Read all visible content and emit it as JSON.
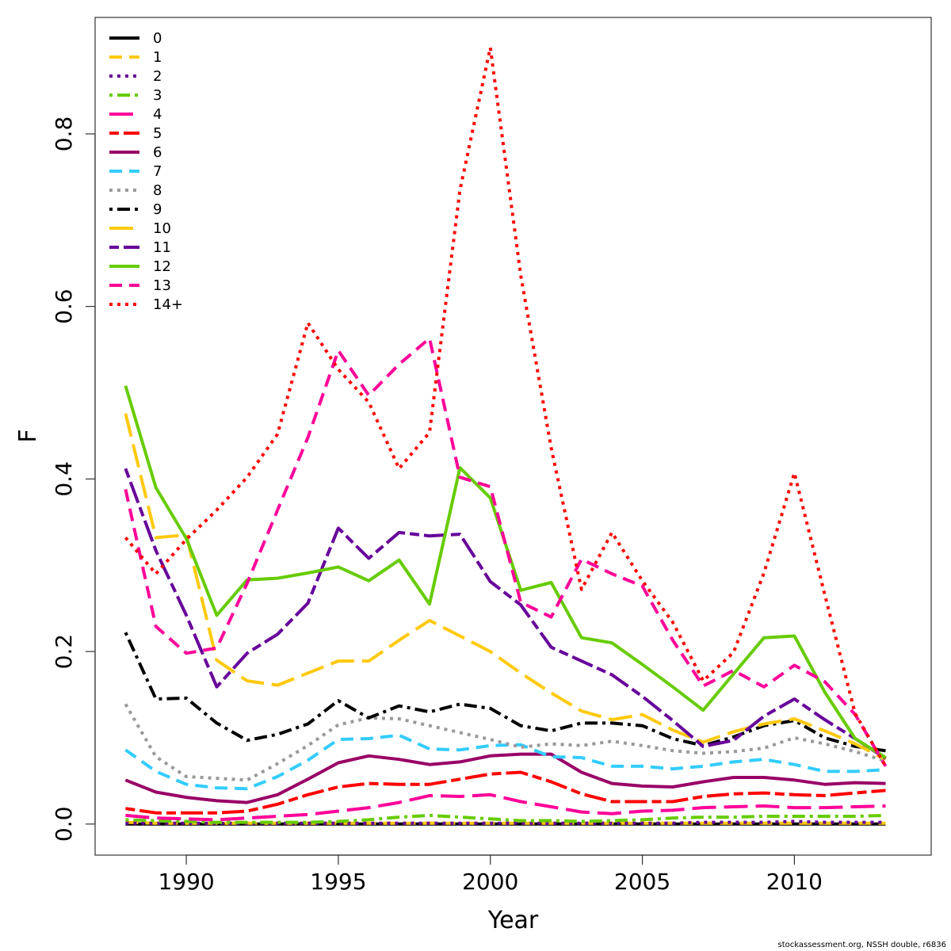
{
  "chart_data": {
    "type": "line",
    "xlabel": "Year",
    "ylabel": "F",
    "xlim": [
      1987,
      2014.5
    ],
    "ylim": [
      -0.036,
      0.935
    ],
    "x_ticks": [
      1990,
      1995,
      2000,
      2005,
      2010
    ],
    "y_ticks": [
      0.0,
      0.2,
      0.4,
      0.6,
      0.8
    ],
    "y_tick_labels": [
      "0.0",
      "0.2",
      "0.4",
      "0.6",
      "0.8"
    ],
    "legend_position": "top-left",
    "x": [
      1988,
      1989,
      1990,
      1991,
      1992,
      1993,
      1994,
      1995,
      1996,
      1997,
      1998,
      1999,
      2000,
      2001,
      2002,
      2003,
      2004,
      2005,
      2006,
      2007,
      2008,
      2009,
      2010,
      2011,
      2012,
      2013
    ],
    "series": [
      {
        "name": "0",
        "color": "#000000",
        "dash": "solid",
        "values": [
          0,
          0,
          0,
          0,
          0,
          0,
          0,
          0,
          0,
          0,
          0,
          0,
          0,
          0,
          0,
          0,
          0,
          0,
          0,
          0,
          0,
          0,
          0,
          0,
          0,
          0
        ]
      },
      {
        "name": "1",
        "color": "#FFC90E",
        "dash": "dashed",
        "values": [
          0.002,
          0.001,
          0.001,
          0.001,
          0.001,
          0.001,
          0.001,
          0.001,
          0.001,
          0.001,
          0.001,
          0.001,
          0.001,
          0.001,
          0.001,
          0.001,
          0.001,
          0.001,
          0.001,
          0.001,
          0.001,
          0.001,
          0.001,
          0.001,
          0.001,
          0.001
        ]
      },
      {
        "name": "2",
        "color": "#660099",
        "dash": "dotted",
        "values": [
          0.001,
          0.001,
          0.001,
          0.001,
          0.001,
          0.001,
          0.001,
          0.001,
          0.001,
          0.001,
          0.001,
          0.001,
          0.001,
          0.001,
          0.001,
          0.001,
          0.001,
          0.001,
          0.001,
          0.002,
          0.002,
          0.002,
          0.003,
          0.002,
          0.002,
          0.002
        ]
      },
      {
        "name": "3",
        "color": "#66CC00",
        "dash": "dotdash",
        "values": [
          0.005,
          0.004,
          0.003,
          0.002,
          0.002,
          0.002,
          0.002,
          0.003,
          0.005,
          0.008,
          0.01,
          0.008,
          0.006,
          0.004,
          0.004,
          0.003,
          0.004,
          0.005,
          0.007,
          0.008,
          0.008,
          0.009,
          0.009,
          0.009,
          0.009,
          0.01
        ]
      },
      {
        "name": "4",
        "color": "#FF0099",
        "dash": "longdash",
        "values": [
          0.01,
          0.007,
          0.006,
          0.005,
          0.007,
          0.009,
          0.011,
          0.015,
          0.019,
          0.025,
          0.033,
          0.032,
          0.034,
          0.026,
          0.02,
          0.014,
          0.012,
          0.015,
          0.016,
          0.019,
          0.02,
          0.021,
          0.019,
          0.019,
          0.02,
          0.021
        ]
      },
      {
        "name": "5",
        "color": "#FF0000",
        "dash": "twodash",
        "values": [
          0.018,
          0.013,
          0.013,
          0.013,
          0.015,
          0.023,
          0.034,
          0.043,
          0.047,
          0.046,
          0.046,
          0.052,
          0.058,
          0.06,
          0.049,
          0.035,
          0.026,
          0.026,
          0.026,
          0.032,
          0.035,
          0.036,
          0.034,
          0.033,
          0.036,
          0.039
        ]
      },
      {
        "name": "6",
        "color": "#990066",
        "dash": "solid",
        "values": [
          0.051,
          0.037,
          0.031,
          0.027,
          0.025,
          0.034,
          0.052,
          0.071,
          0.079,
          0.075,
          0.069,
          0.072,
          0.079,
          0.081,
          0.081,
          0.06,
          0.047,
          0.044,
          0.043,
          0.049,
          0.054,
          0.054,
          0.051,
          0.046,
          0.048,
          0.047
        ]
      },
      {
        "name": "7",
        "color": "#33CCFF",
        "dash": "dashed",
        "values": [
          0.086,
          0.061,
          0.046,
          0.042,
          0.041,
          0.055,
          0.074,
          0.098,
          0.099,
          0.103,
          0.087,
          0.086,
          0.091,
          0.092,
          0.078,
          0.077,
          0.067,
          0.067,
          0.064,
          0.067,
          0.072,
          0.075,
          0.069,
          0.061,
          0.061,
          0.063
        ]
      },
      {
        "name": "8",
        "color": "#999999",
        "dash": "dotted",
        "values": [
          0.139,
          0.078,
          0.055,
          0.053,
          0.051,
          0.07,
          0.091,
          0.115,
          0.123,
          0.122,
          0.114,
          0.106,
          0.098,
          0.089,
          0.093,
          0.091,
          0.096,
          0.091,
          0.085,
          0.082,
          0.084,
          0.088,
          0.1,
          0.093,
          0.084,
          0.073
        ]
      },
      {
        "name": "9",
        "color": "#000000",
        "dash": "dotdash",
        "values": [
          0.222,
          0.145,
          0.146,
          0.117,
          0.097,
          0.104,
          0.116,
          0.143,
          0.123,
          0.137,
          0.13,
          0.139,
          0.134,
          0.114,
          0.108,
          0.117,
          0.117,
          0.114,
          0.099,
          0.091,
          0.101,
          0.114,
          0.12,
          0.1,
          0.09,
          0.085
        ]
      },
      {
        "name": "10",
        "color": "#FFC90E",
        "dash": "longdash",
        "values": [
          0.476,
          0.332,
          0.335,
          0.19,
          0.166,
          0.161,
          0.175,
          0.189,
          0.189,
          0.213,
          0.236,
          0.218,
          0.2,
          0.175,
          0.152,
          0.131,
          0.121,
          0.127,
          0.109,
          0.095,
          0.107,
          0.116,
          0.122,
          0.108,
          0.093,
          0.075
        ]
      },
      {
        "name": "11",
        "color": "#660099",
        "dash": "twodash",
        "values": [
          0.412,
          0.317,
          0.242,
          0.159,
          0.198,
          0.22,
          0.256,
          0.343,
          0.308,
          0.338,
          0.334,
          0.336,
          0.281,
          0.254,
          0.205,
          0.189,
          0.173,
          0.148,
          0.12,
          0.09,
          0.097,
          0.125,
          0.145,
          0.121,
          0.099,
          0.076
        ]
      },
      {
        "name": "12",
        "color": "#66CC00",
        "dash": "solid",
        "values": [
          0.508,
          0.39,
          0.331,
          0.242,
          0.283,
          0.285,
          0.291,
          0.298,
          0.282,
          0.306,
          0.255,
          0.413,
          0.378,
          0.271,
          0.28,
          0.216,
          0.21,
          0.185,
          0.159,
          0.132,
          0.174,
          0.216,
          0.218,
          0.153,
          0.099,
          0.077
        ]
      },
      {
        "name": "13",
        "color": "#FF0099",
        "dash": "dashed",
        "values": [
          0.388,
          0.229,
          0.198,
          0.204,
          0.279,
          0.364,
          0.448,
          0.549,
          0.497,
          0.533,
          0.563,
          0.402,
          0.391,
          0.257,
          0.24,
          0.307,
          0.29,
          0.276,
          0.213,
          0.16,
          0.178,
          0.159,
          0.184,
          0.165,
          0.127,
          0.067
        ]
      },
      {
        "name": "14+",
        "color": "#FF0000",
        "dash": "dotted",
        "values": [
          0.332,
          0.29,
          0.33,
          0.364,
          0.402,
          0.452,
          0.581,
          0.527,
          0.489,
          0.412,
          0.454,
          0.735,
          0.9,
          0.636,
          0.436,
          0.272,
          0.338,
          0.282,
          0.234,
          0.166,
          0.199,
          0.291,
          0.407,
          0.266,
          0.128,
          0.067
        ]
      }
    ]
  },
  "footer_text": "stockassessment.org, NSSH  double, r6836"
}
